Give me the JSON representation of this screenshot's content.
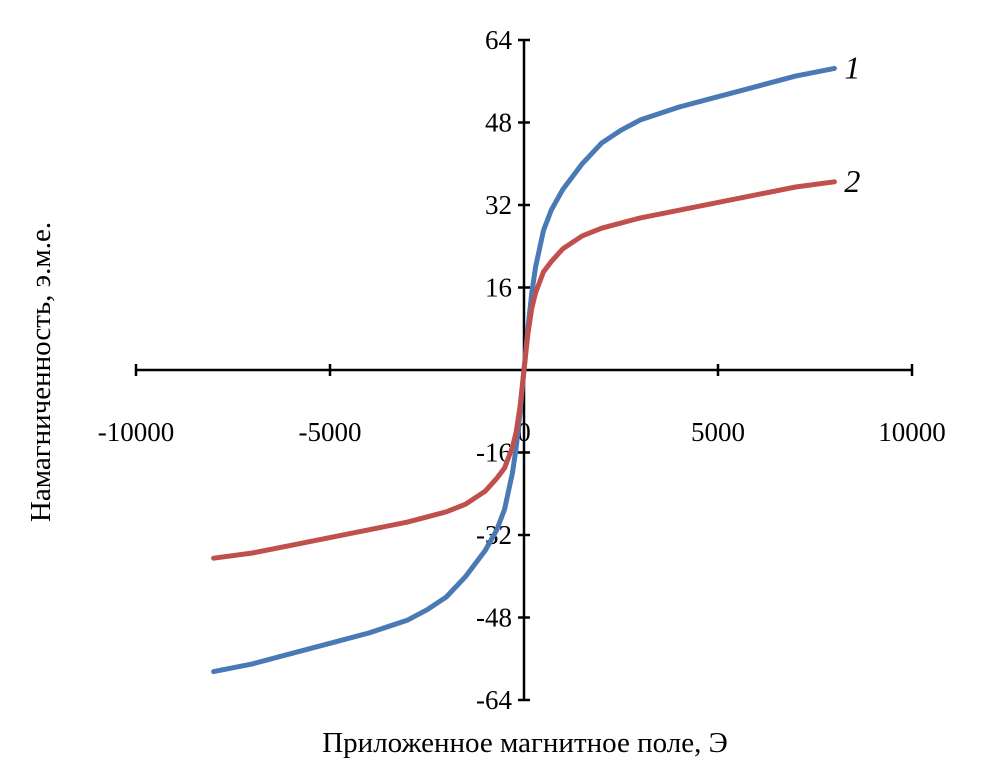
{
  "chart_data": {
    "type": "line",
    "xlabel": "Приложенное магнитное поле, Э",
    "ylabel": "Намагниченность, э.м.е.",
    "xlim": [
      -10000,
      10000
    ],
    "ylim": [
      -64,
      64
    ],
    "xticks": [
      -10000,
      -5000,
      0,
      5000,
      10000
    ],
    "yticks": [
      -64,
      -48,
      -32,
      -16,
      0,
      16,
      32,
      48,
      64
    ],
    "xtick_labels": [
      "-10000",
      "-5000",
      "0",
      "5000",
      "10000"
    ],
    "ytick_labels": [
      "-64",
      "-48",
      "-32",
      "-16",
      "0",
      "16",
      "32",
      "48",
      "64"
    ],
    "grid": false,
    "series": [
      {
        "name": "1",
        "color": "#4a7ab5",
        "points": [
          [
            -8000,
            -58.5
          ],
          [
            -7000,
            -57
          ],
          [
            -6000,
            -55
          ],
          [
            -5000,
            -53
          ],
          [
            -4000,
            -51
          ],
          [
            -3000,
            -48.5
          ],
          [
            -2500,
            -46.5
          ],
          [
            -2000,
            -44
          ],
          [
            -1500,
            -40
          ],
          [
            -1000,
            -35
          ],
          [
            -700,
            -31
          ],
          [
            -500,
            -27
          ],
          [
            -300,
            -20
          ],
          [
            -200,
            -15
          ],
          [
            -100,
            -8
          ],
          [
            0,
            0
          ],
          [
            100,
            8
          ],
          [
            200,
            15
          ],
          [
            300,
            20
          ],
          [
            500,
            27
          ],
          [
            700,
            31
          ],
          [
            1000,
            35
          ],
          [
            1500,
            40
          ],
          [
            2000,
            44
          ],
          [
            2500,
            46.5
          ],
          [
            3000,
            48.5
          ],
          [
            4000,
            51
          ],
          [
            5000,
            53
          ],
          [
            6000,
            55
          ],
          [
            7000,
            57
          ],
          [
            8000,
            58.5
          ]
        ]
      },
      {
        "name": "2",
        "color": "#c0504d",
        "points": [
          [
            -8000,
            -36.5
          ],
          [
            -7000,
            -35.5
          ],
          [
            -6000,
            -34
          ],
          [
            -5000,
            -32.5
          ],
          [
            -4000,
            -31
          ],
          [
            -3000,
            -29.5
          ],
          [
            -2000,
            -27.5
          ],
          [
            -1500,
            -26
          ],
          [
            -1000,
            -23.5
          ],
          [
            -700,
            -21
          ],
          [
            -500,
            -19
          ],
          [
            -300,
            -15
          ],
          [
            -200,
            -12
          ],
          [
            -100,
            -7
          ],
          [
            0,
            0
          ],
          [
            100,
            7
          ],
          [
            200,
            12
          ],
          [
            300,
            15
          ],
          [
            500,
            19
          ],
          [
            700,
            21
          ],
          [
            1000,
            23.5
          ],
          [
            1500,
            26
          ],
          [
            2000,
            27.5
          ],
          [
            3000,
            29.5
          ],
          [
            4000,
            31
          ],
          [
            5000,
            32.5
          ],
          [
            6000,
            34
          ],
          [
            7000,
            35.5
          ],
          [
            8000,
            36.5
          ]
        ]
      }
    ]
  }
}
